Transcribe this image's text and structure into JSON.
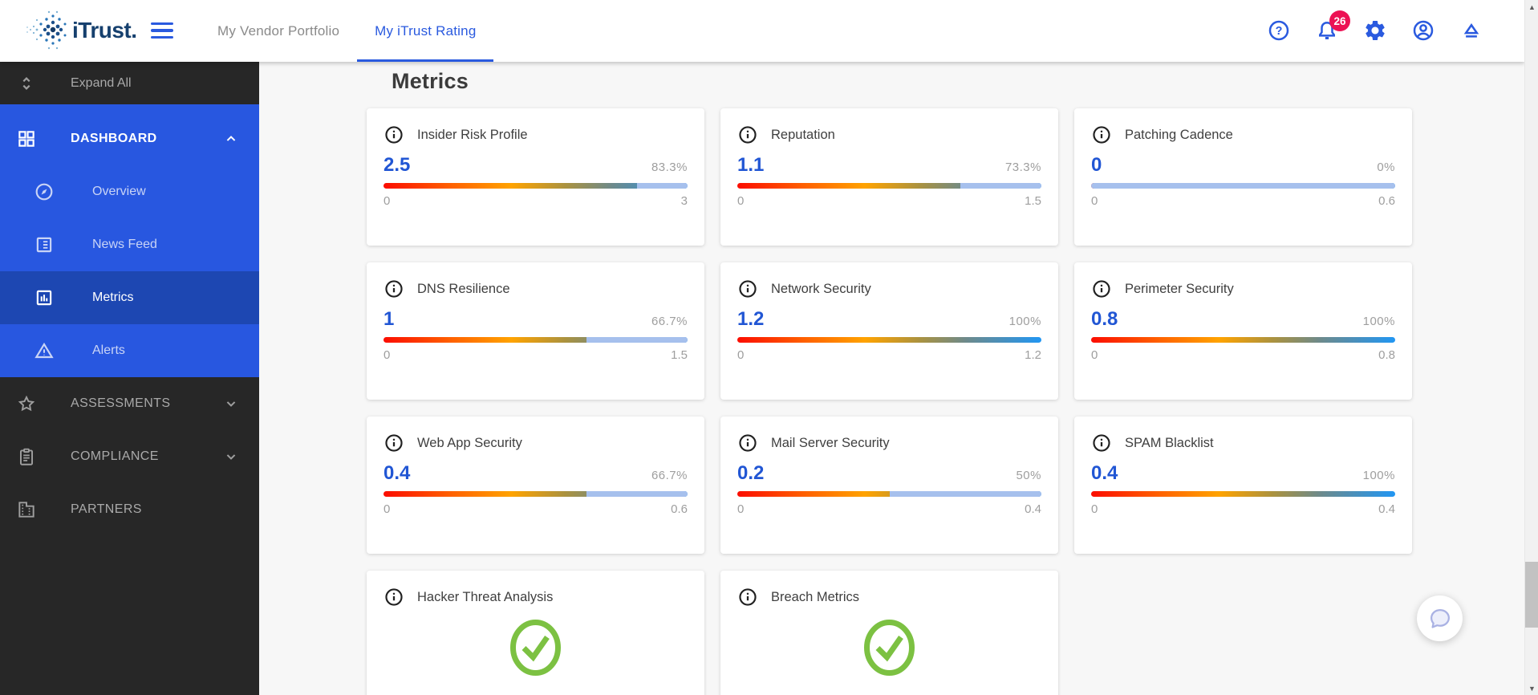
{
  "navbar": {
    "logo_text": "iTrust.",
    "tabs": [
      {
        "label": "My Vendor Portfolio",
        "active": false
      },
      {
        "label": "My iTrust Rating",
        "active": true
      }
    ],
    "notification_count": "26",
    "icons": [
      "menu-icon",
      "help-icon",
      "notifications-bell-icon",
      "settings-gear-icon",
      "account-icon",
      "eject-icon"
    ]
  },
  "sidebar": {
    "expand_all_label": "Expand All",
    "items": [
      {
        "label": "DASHBOARD",
        "icon": "dashboard-grid-icon",
        "expanded": true
      },
      {
        "label": "Overview",
        "icon": "compass-icon"
      },
      {
        "label": "News Feed",
        "icon": "news-list-icon"
      },
      {
        "label": "Metrics",
        "icon": "bar-chart-icon",
        "selected": true
      },
      {
        "label": "Alerts",
        "icon": "warning-triangle-icon"
      },
      {
        "label": "ASSESSMENTS",
        "icon": "star-icon",
        "collapsed": true
      },
      {
        "label": "COMPLIANCE",
        "icon": "clipboard-icon",
        "collapsed": true
      },
      {
        "label": "PARTNERS",
        "icon": "building-icon"
      }
    ]
  },
  "main": {
    "title": "Metrics",
    "metrics": [
      {
        "name": "Insider Risk Profile",
        "type": "gauge",
        "value": "2.5",
        "percent": "83.3%",
        "pct": 83.3,
        "min": "0",
        "max": "3"
      },
      {
        "name": "Reputation",
        "type": "gauge",
        "value": "1.1",
        "percent": "73.3%",
        "pct": 73.3,
        "min": "0",
        "max": "1.5"
      },
      {
        "name": "Patching Cadence",
        "type": "gauge",
        "value": "0",
        "percent": "0%",
        "pct": 0,
        "min": "0",
        "max": "0.6"
      },
      {
        "name": "DNS Resilience",
        "type": "gauge",
        "value": "1",
        "percent": "66.7%",
        "pct": 66.7,
        "min": "0",
        "max": "1.5"
      },
      {
        "name": "Network Security",
        "type": "gauge",
        "value": "1.2",
        "percent": "100%",
        "pct": 100,
        "min": "0",
        "max": "1.2"
      },
      {
        "name": "Perimeter Security",
        "type": "gauge",
        "value": "0.8",
        "percent": "100%",
        "pct": 100,
        "min": "0",
        "max": "0.8"
      },
      {
        "name": "Web App Security",
        "type": "gauge",
        "value": "0.4",
        "percent": "66.7%",
        "pct": 66.7,
        "min": "0",
        "max": "0.6"
      },
      {
        "name": "Mail Server Security",
        "type": "gauge",
        "value": "0.2",
        "percent": "50%",
        "pct": 50,
        "min": "0",
        "max": "0.4"
      },
      {
        "name": "SPAM Blacklist",
        "type": "gauge",
        "value": "0.4",
        "percent": "100%",
        "pct": 100,
        "min": "0",
        "max": "0.4"
      },
      {
        "name": "Hacker Threat Analysis",
        "type": "check"
      },
      {
        "name": "Breach Metrics",
        "type": "check"
      }
    ]
  },
  "colors": {
    "accent_blue": "#2a5adf",
    "sidebar_section_blue": "#2857e0",
    "sidebar_selected_blue": "#1d47b2",
    "badge_pink": "#ec1254",
    "value_blue": "#2156d4",
    "check_green": "#7cc142",
    "bar_remainder": "#a6c0ed",
    "bar_gradient": [
      "#fb0d00",
      "#ff6000",
      "#ffa300",
      "#aa9240",
      "#6e8a8a",
      "#2196f3"
    ]
  }
}
